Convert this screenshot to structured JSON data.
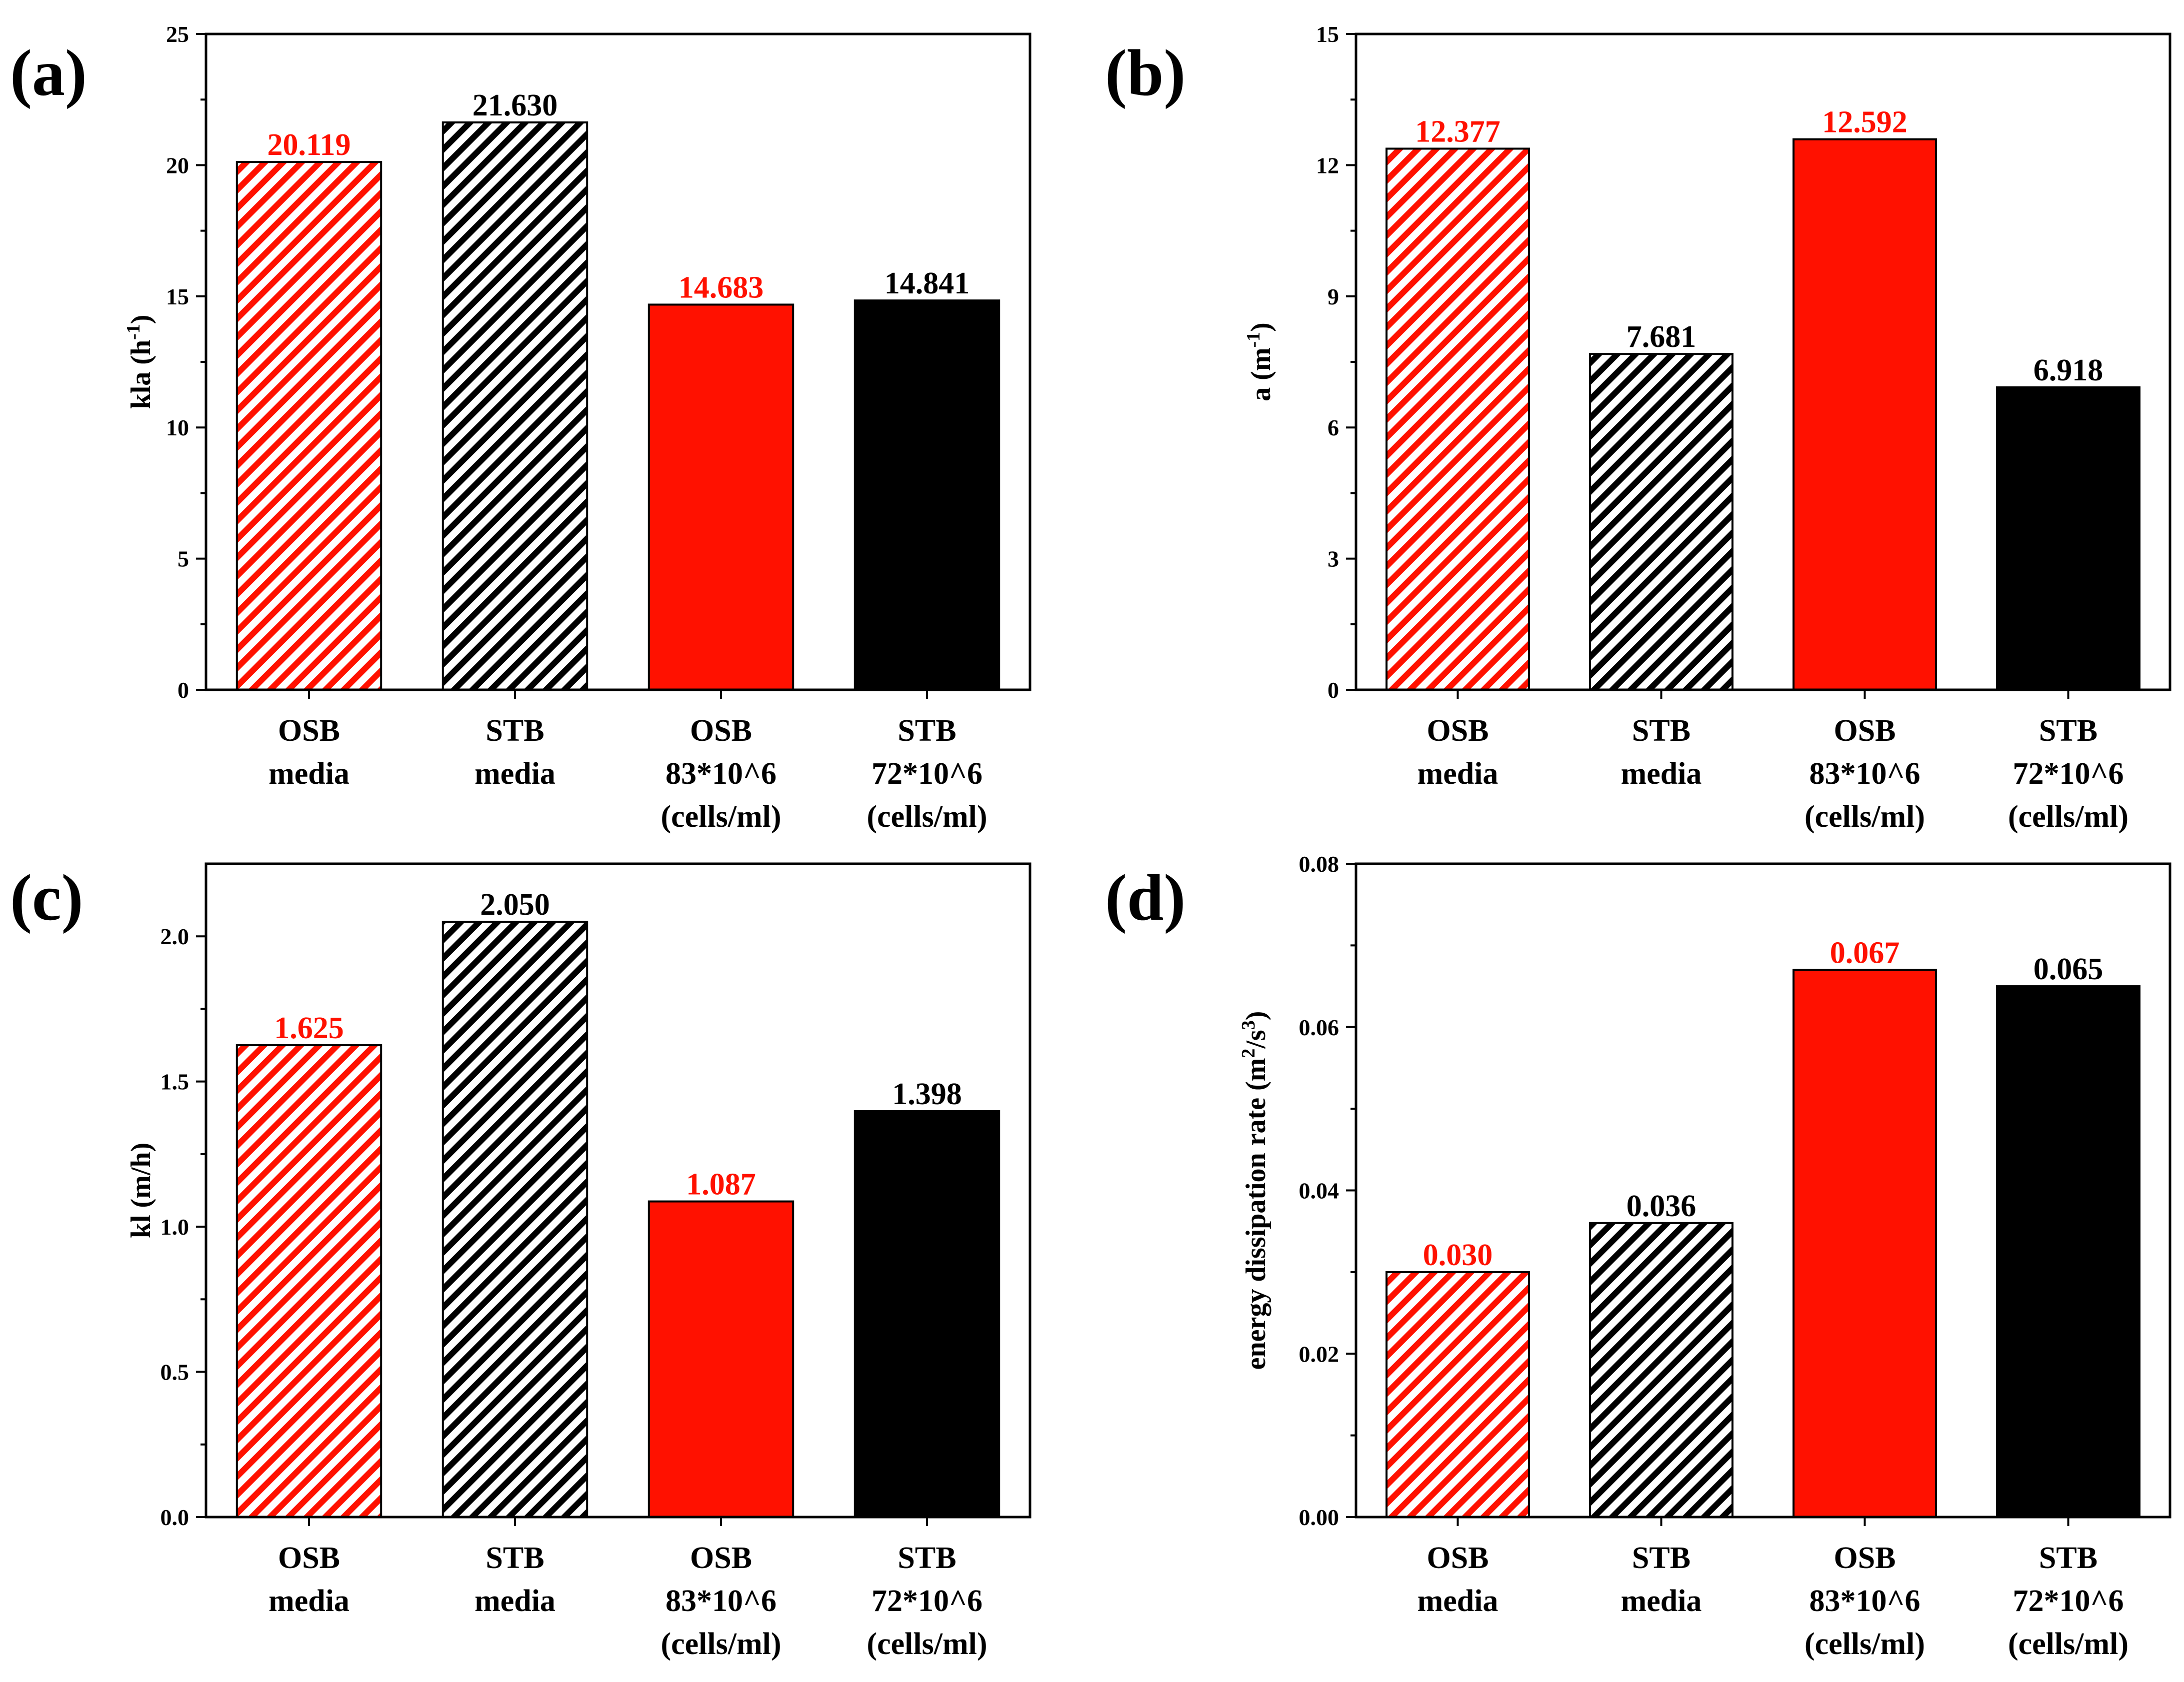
{
  "colors": {
    "red": "#ff1100",
    "black": "#000000",
    "white": "#ffffff"
  },
  "chart_data": [
    {
      "panel_label": "(a)",
      "type": "bar",
      "categories": [
        [
          "OSB",
          "media"
        ],
        [
          "STB",
          "media"
        ],
        [
          "OSB",
          "83*10^6",
          "(cells/ml)"
        ],
        [
          "STB",
          "72*10^6",
          "(cells/ml)"
        ]
      ],
      "values": [
        20.119,
        21.63,
        14.683,
        14.841
      ],
      "value_labels": [
        "20.119",
        "21.630",
        "14.683",
        "14.841"
      ],
      "fills": [
        "red-hatch",
        "black-hatch",
        "red",
        "black"
      ],
      "label_colors": [
        "#ff1100",
        "#000000",
        "#ff1100",
        "#000000"
      ],
      "ylabel": {
        "base": "kla (h",
        "sup": "-1",
        "tail": ")"
      },
      "ylim": [
        0,
        25
      ],
      "yticks": [
        0,
        5,
        10,
        15,
        20,
        25
      ],
      "ytick_labels": [
        "0",
        "5",
        "10",
        "15",
        "20",
        "25"
      ],
      "grid": false,
      "legend": "none"
    },
    {
      "panel_label": "(b)",
      "type": "bar",
      "categories": [
        [
          "OSB",
          "media"
        ],
        [
          "STB",
          "media"
        ],
        [
          "OSB",
          "83*10^6",
          "(cells/ml)"
        ],
        [
          "STB",
          "72*10^6",
          "(cells/ml)"
        ]
      ],
      "values": [
        12.377,
        7.681,
        12.592,
        6.918
      ],
      "value_labels": [
        "12.377",
        "7.681",
        "12.592",
        "6.918"
      ],
      "fills": [
        "red-hatch",
        "black-hatch",
        "red",
        "black"
      ],
      "label_colors": [
        "#ff1100",
        "#000000",
        "#ff1100",
        "#000000"
      ],
      "ylabel": {
        "base": "a (m",
        "sup": "-1",
        "tail": ")"
      },
      "ylim": [
        0,
        15
      ],
      "yticks": [
        0,
        3,
        6,
        9,
        12,
        15
      ],
      "ytick_labels": [
        "0",
        "3",
        "6",
        "9",
        "12",
        "15"
      ],
      "grid": false,
      "legend": "none"
    },
    {
      "panel_label": "(c)",
      "type": "bar",
      "categories": [
        [
          "OSB",
          "media"
        ],
        [
          "STB",
          "media"
        ],
        [
          "OSB",
          "83*10^6",
          "(cells/ml)"
        ],
        [
          "STB",
          "72*10^6",
          "(cells/ml)"
        ]
      ],
      "values": [
        1.625,
        2.05,
        1.087,
        1.398
      ],
      "value_labels": [
        "1.625",
        "2.050",
        "1.087",
        "1.398"
      ],
      "fills": [
        "red-hatch",
        "black-hatch",
        "red",
        "black"
      ],
      "label_colors": [
        "#ff1100",
        "#000000",
        "#ff1100",
        "#000000"
      ],
      "ylabel": {
        "base": "kl (m/h)",
        "sup": "",
        "tail": ""
      },
      "ylim": [
        0,
        2.25
      ],
      "yticks": [
        0,
        0.5,
        1,
        1.5,
        2
      ],
      "ytick_labels": [
        "0.0",
        "0.5",
        "1.0",
        "1.5",
        "2.0"
      ],
      "grid": false,
      "legend": "none"
    },
    {
      "panel_label": "(d)",
      "type": "bar",
      "categories": [
        [
          "OSB",
          "media"
        ],
        [
          "STB",
          "media"
        ],
        [
          "OSB",
          "83*10^6",
          "(cells/ml)"
        ],
        [
          "STB",
          "72*10^6",
          "(cells/ml)"
        ]
      ],
      "values": [
        0.03,
        0.036,
        0.067,
        0.065
      ],
      "value_labels": [
        "0.030",
        "0.036",
        "0.067",
        "0.065"
      ],
      "fills": [
        "red-hatch",
        "black-hatch",
        "red",
        "black"
      ],
      "label_colors": [
        "#ff1100",
        "#000000",
        "#ff1100",
        "#000000"
      ],
      "ylabel": {
        "base": "energy dissipation rate (m",
        "sup": "2",
        "mid": "/s",
        "sup2": "3",
        "tail": ")"
      },
      "ylim": [
        0,
        0.08
      ],
      "yticks": [
        0,
        0.02,
        0.04,
        0.06,
        0.08
      ],
      "ytick_labels": [
        "0.00",
        "0.02",
        "0.04",
        "0.06",
        "0.08"
      ],
      "grid": false,
      "legend": "none"
    }
  ]
}
